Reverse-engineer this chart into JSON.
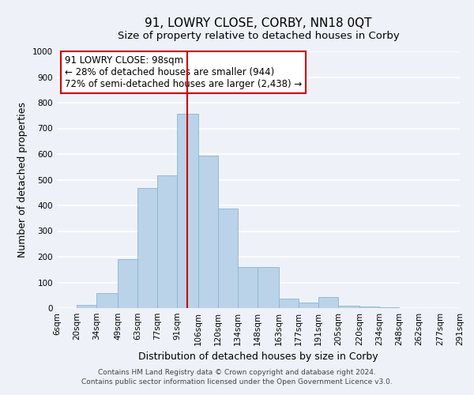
{
  "title": "91, LOWRY CLOSE, CORBY, NN18 0QT",
  "subtitle": "Size of property relative to detached houses in Corby",
  "xlabel": "Distribution of detached houses by size in Corby",
  "ylabel": "Number of detached properties",
  "footer_line1": "Contains HM Land Registry data © Crown copyright and database right 2024.",
  "footer_line2": "Contains public sector information licensed under the Open Government Licence v3.0.",
  "annotation_line1": "91 LOWRY CLOSE: 98sqm",
  "annotation_line2": "← 28% of detached houses are smaller (944)",
  "annotation_line3": "72% of semi-detached houses are larger (2,438) →",
  "bar_categories": [
    "6sqm",
    "20sqm",
    "34sqm",
    "49sqm",
    "63sqm",
    "77sqm",
    "91sqm",
    "106sqm",
    "120sqm",
    "134sqm",
    "148sqm",
    "163sqm",
    "177sqm",
    "191sqm",
    "205sqm",
    "220sqm",
    "234sqm",
    "248sqm",
    "262sqm",
    "277sqm",
    "291sqm"
  ],
  "bar_heights": [
    0,
    12,
    60,
    192,
    468,
    518,
    757,
    595,
    387,
    160,
    160,
    38,
    22,
    42,
    10,
    5,
    3,
    0,
    0,
    0
  ],
  "bar_color": "#bad3e8",
  "bar_edge_color": "#8ab4d4",
  "vline_x": 98,
  "vline_color": "#cc0000",
  "ylim": [
    0,
    1000
  ],
  "yticks": [
    0,
    100,
    200,
    300,
    400,
    500,
    600,
    700,
    800,
    900,
    1000
  ],
  "annotation_box_color": "#ffffff",
  "annotation_box_edge": "#cc0000",
  "background_color": "#eef2f8",
  "grid_color": "#ffffff",
  "title_fontsize": 11,
  "subtitle_fontsize": 9.5,
  "axis_label_fontsize": 9,
  "tick_fontsize": 7.5,
  "annotation_fontsize": 8.5,
  "footer_fontsize": 6.5,
  "bin_edges": [
    6,
    20,
    34,
    49,
    63,
    77,
    91,
    106,
    120,
    134,
    148,
    163,
    177,
    191,
    205,
    220,
    234,
    248,
    262,
    277,
    291
  ]
}
